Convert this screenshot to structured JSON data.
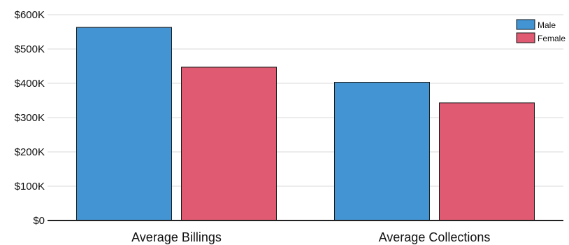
{
  "chart_data": {
    "type": "bar",
    "title": "",
    "xlabel": "",
    "ylabel": "",
    "categories": [
      "Average Billings",
      "Average Collections"
    ],
    "series": [
      {
        "name": "Male",
        "color": "#4394d2",
        "values": [
          563000,
          403000
        ]
      },
      {
        "name": "Female",
        "color": "#e05a72",
        "values": [
          447000,
          343000
        ]
      }
    ],
    "ylim": [
      0,
      600000
    ],
    "yticks": [
      0,
      100000,
      200000,
      300000,
      400000,
      500000,
      600000
    ],
    "ytick_labels": [
      "$0",
      "$100K",
      "$200K",
      "$300K",
      "$400K",
      "$500K",
      "$600K"
    ],
    "grid": true,
    "legend_position": "top-right"
  }
}
